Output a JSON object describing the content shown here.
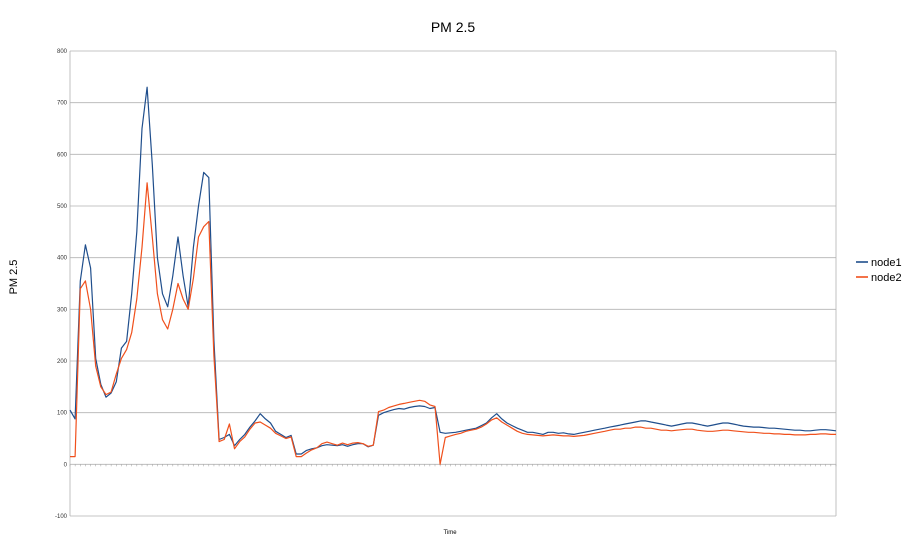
{
  "chart_data": {
    "type": "line",
    "title": "PM 2.5",
    "xlabel": "Time",
    "ylabel": "PM 2.5",
    "ylim": [
      -100,
      800
    ],
    "yticks": [
      -100,
      0,
      100,
      200,
      300,
      400,
      500,
      600,
      700,
      800
    ],
    "grid": true,
    "legend": "right",
    "x_count": 150,
    "series": [
      {
        "name": "node1",
        "color": "#1f4e8c",
        "values": [
          105,
          88,
          355,
          425,
          380,
          205,
          155,
          130,
          138,
          160,
          225,
          238,
          330,
          450,
          650,
          730,
          580,
          400,
          330,
          305,
          365,
          440,
          365,
          305,
          420,
          500,
          565,
          555,
          240,
          48,
          52,
          58,
          36,
          48,
          58,
          72,
          84,
          98,
          88,
          80,
          64,
          58,
          52,
          56,
          20,
          20,
          27,
          30,
          32,
          36,
          38,
          37,
          36,
          38,
          35,
          38,
          40,
          40,
          34,
          37,
          95,
          100,
          103,
          106,
          108,
          107,
          110,
          112,
          113,
          112,
          108,
          110,
          62,
          60,
          61,
          62,
          64,
          66,
          68,
          70,
          75,
          80,
          90,
          98,
          88,
          80,
          75,
          70,
          66,
          62,
          62,
          60,
          58,
          62,
          62,
          60,
          61,
          59,
          58,
          60,
          62,
          64,
          66,
          68,
          70,
          72,
          74,
          76,
          78,
          80,
          82,
          84,
          84,
          82,
          80,
          78,
          76,
          74,
          76,
          78,
          80,
          80,
          78,
          76,
          74,
          76,
          78,
          80,
          80,
          78,
          76,
          74,
          73,
          72,
          72,
          71,
          70,
          70,
          69,
          68,
          67,
          66,
          66,
          65,
          65,
          66,
          67,
          67,
          66,
          65
        ]
      },
      {
        "name": "node2",
        "color": "#f0501c",
        "values": [
          15,
          15,
          340,
          355,
          300,
          190,
          150,
          135,
          140,
          175,
          205,
          222,
          255,
          320,
          420,
          545,
          440,
          330,
          280,
          262,
          300,
          350,
          320,
          300,
          360,
          440,
          460,
          470,
          210,
          44,
          48,
          78,
          30,
          44,
          53,
          68,
          80,
          82,
          76,
          70,
          60,
          55,
          50,
          53,
          15,
          15,
          22,
          28,
          32,
          40,
          43,
          40,
          37,
          41,
          38,
          41,
          42,
          40,
          35,
          37,
          102,
          105,
          110,
          113,
          116,
          118,
          120,
          122,
          124,
          122,
          115,
          112,
          0,
          52,
          55,
          58,
          60,
          64,
          66,
          68,
          72,
          78,
          86,
          90,
          82,
          76,
          70,
          64,
          60,
          58,
          57,
          56,
          55,
          56,
          57,
          56,
          55,
          55,
          54,
          55,
          56,
          58,
          60,
          62,
          64,
          66,
          68,
          68,
          70,
          70,
          72,
          72,
          70,
          70,
          68,
          66,
          66,
          65,
          66,
          67,
          68,
          68,
          66,
          65,
          64,
          64,
          65,
          66,
          66,
          65,
          64,
          63,
          62,
          62,
          61,
          60,
          60,
          59,
          59,
          58,
          58,
          57,
          57,
          57,
          58,
          58,
          59,
          59,
          58,
          58
        ]
      }
    ]
  }
}
